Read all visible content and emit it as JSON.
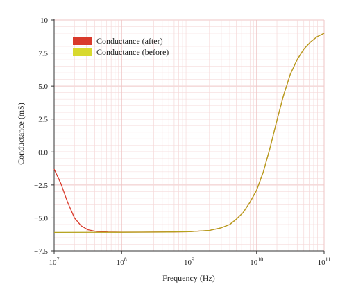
{
  "chart_data": {
    "type": "line",
    "xlabel": "Frequency (Hz)",
    "ylabel": "Conductance (mS)",
    "xscale": "log",
    "xlim": [
      10000000,
      100000000000
    ],
    "ylim": [
      -7.5,
      10
    ],
    "x_ticks": [
      {
        "value": 10000000,
        "base": "10",
        "exp": "7"
      },
      {
        "value": 100000000,
        "base": "10",
        "exp": "8"
      },
      {
        "value": 1000000000,
        "base": "10",
        "exp": "9"
      },
      {
        "value": 10000000000,
        "base": "10",
        "exp": "10"
      },
      {
        "value": 100000000000,
        "base": "10",
        "exp": "11"
      }
    ],
    "y_ticks": [
      {
        "value": 10,
        "label": "10"
      },
      {
        "value": 7.5,
        "label": "7.5"
      },
      {
        "value": 5,
        "label": "5.0"
      },
      {
        "value": 2.5,
        "label": "2.5"
      },
      {
        "value": 0,
        "label": "0.0"
      },
      {
        "value": -2.5,
        "label": "−2.5"
      },
      {
        "value": -5,
        "label": "−5.0"
      },
      {
        "value": -7.5,
        "label": "−7.5"
      }
    ],
    "grid": true,
    "legend_position": "top-left",
    "series": [
      {
        "name": "Conductance (after)",
        "color": "#d93a2b",
        "x": [
          10000000,
          12600000,
          15800000,
          20000000,
          25100000,
          31600000,
          39800000,
          50100000,
          63100000,
          100000000,
          200000000,
          500000000,
          1000000000,
          2000000000,
          3000000000,
          4000000000,
          5000000000,
          6300000000,
          8000000000,
          10000000000,
          12600000000,
          15800000000,
          20000000000,
          25100000000,
          31600000000,
          39800000000,
          50100000000,
          63100000000,
          79400000000,
          100000000000
        ],
        "y": [
          -1.3,
          -2.4,
          -3.8,
          -5.0,
          -5.6,
          -5.9,
          -6.0,
          -6.05,
          -6.07,
          -6.08,
          -6.08,
          -6.07,
          -6.05,
          -5.95,
          -5.75,
          -5.5,
          -5.1,
          -4.6,
          -3.8,
          -2.9,
          -1.5,
          0.3,
          2.4,
          4.3,
          5.9,
          7.0,
          7.8,
          8.35,
          8.75,
          9.0
        ]
      },
      {
        "name": "Conductance (before)",
        "color": "#b5a21c",
        "legend_color": "#d8d92e",
        "x": [
          10000000,
          100000000,
          200000000,
          500000000,
          1000000000,
          2000000000,
          3000000000,
          4000000000,
          5000000000,
          6300000000,
          8000000000,
          10000000000,
          12600000000,
          15800000000,
          20000000000,
          25100000000,
          31600000000,
          39800000000,
          50100000000,
          63100000000,
          79400000000,
          100000000000
        ],
        "y": [
          -6.1,
          -6.09,
          -6.08,
          -6.07,
          -6.05,
          -5.95,
          -5.75,
          -5.5,
          -5.1,
          -4.6,
          -3.8,
          -2.9,
          -1.5,
          0.3,
          2.4,
          4.3,
          5.9,
          7.0,
          7.8,
          8.35,
          8.75,
          9.0
        ]
      }
    ]
  }
}
